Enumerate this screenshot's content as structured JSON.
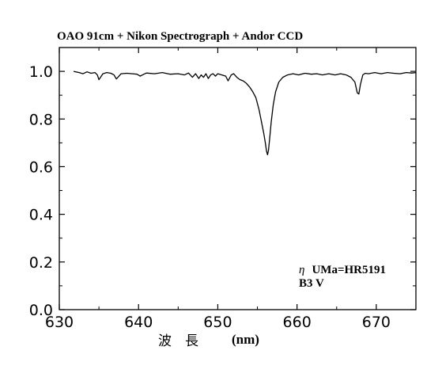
{
  "chart_data": {
    "type": "line",
    "title": "OAO 91cm + Nikon Spectrograph + Andor CCD",
    "xlabel_jp": "波　長",
    "xlabel_unit": "(nm)",
    "ylabel": "",
    "xlim": [
      630,
      675
    ],
    "ylim": [
      0.0,
      1.1
    ],
    "xticks": [
      630,
      640,
      650,
      660,
      670
    ],
    "xtick_labels": [
      "630",
      "640",
      "650",
      "660",
      "670"
    ],
    "yticks": [
      0.0,
      0.2,
      0.4,
      0.6,
      0.8,
      1.0
    ],
    "ytick_labels": [
      "0.0",
      "0.2",
      "0.4",
      "0.6",
      "0.8",
      "1.0"
    ],
    "grid": false,
    "annotations": [
      {
        "prefix": "η",
        "text": "UMa=HR5191"
      },
      {
        "text": "B3 V"
      }
    ],
    "series": [
      {
        "x": [
          631.8,
          632.5,
          633.0,
          633.5,
          634.0,
          634.5,
          634.8,
          635.0,
          635.2,
          635.5,
          636.0,
          636.5,
          636.9,
          637.2,
          637.4,
          637.8,
          638.5,
          639.2,
          639.8,
          640.2,
          640.5,
          641.0,
          642.0,
          643.0,
          644.0,
          645.0,
          645.8,
          646.3,
          646.8,
          647.2,
          647.6,
          647.9,
          648.2,
          648.5,
          648.8,
          649.1,
          649.4,
          649.7,
          650.0,
          650.5,
          651.0,
          651.3,
          651.7,
          652.0,
          652.4,
          652.8,
          653.2,
          653.6,
          654.0,
          654.4,
          654.8,
          655.2,
          655.5,
          655.8,
          656.0,
          656.15,
          656.28,
          656.4,
          656.55,
          656.75,
          657.0,
          657.3,
          657.7,
          658.2,
          658.8,
          659.5,
          660.2,
          661.0,
          661.8,
          662.5,
          663.2,
          664.0,
          664.8,
          665.5,
          666.2,
          666.8,
          667.3,
          667.6,
          667.8,
          668.0,
          668.3,
          668.6,
          669.0,
          669.8,
          670.6,
          671.4,
          672.2,
          673.0,
          673.8,
          674.5,
          675.0
        ],
        "y": [
          1.0,
          0.995,
          0.99,
          0.998,
          0.992,
          0.995,
          0.985,
          0.965,
          0.975,
          0.99,
          0.995,
          0.992,
          0.985,
          0.968,
          0.975,
          0.99,
          0.992,
          0.99,
          0.988,
          0.98,
          0.985,
          0.993,
          0.99,
          0.995,
          0.988,
          0.99,
          0.985,
          0.993,
          0.975,
          0.99,
          0.97,
          0.985,
          0.975,
          0.99,
          0.97,
          0.985,
          0.99,
          0.98,
          0.99,
          0.985,
          0.98,
          0.96,
          0.985,
          0.99,
          0.975,
          0.965,
          0.96,
          0.95,
          0.935,
          0.915,
          0.89,
          0.84,
          0.79,
          0.74,
          0.7,
          0.665,
          0.65,
          0.67,
          0.72,
          0.79,
          0.86,
          0.915,
          0.955,
          0.975,
          0.985,
          0.99,
          0.985,
          0.992,
          0.988,
          0.99,
          0.985,
          0.99,
          0.985,
          0.99,
          0.985,
          0.975,
          0.955,
          0.91,
          0.905,
          0.945,
          0.985,
          0.992,
          0.99,
          0.995,
          0.99,
          0.995,
          0.992,
          0.99,
          0.995,
          0.993,
          0.995
        ]
      }
    ]
  }
}
